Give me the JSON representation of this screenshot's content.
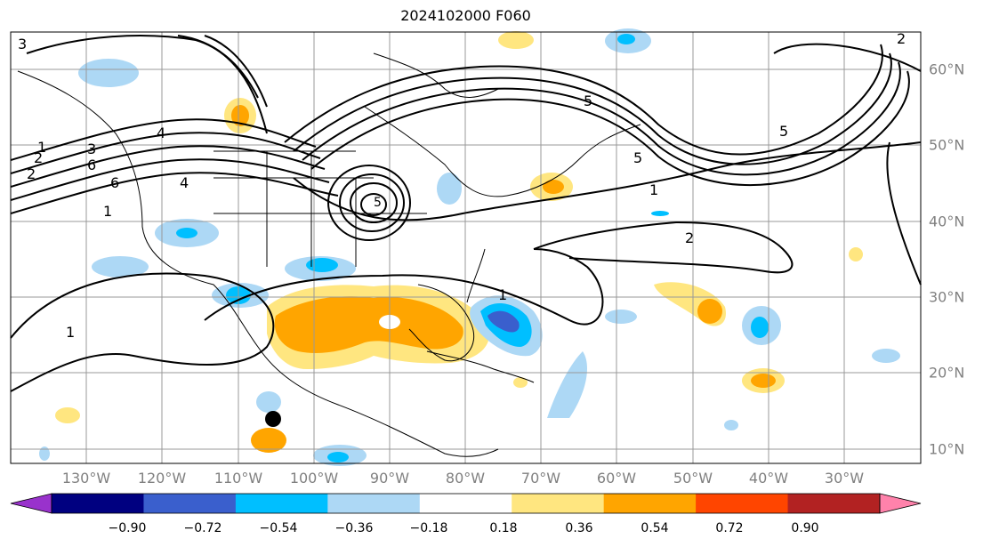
{
  "title": "2024102000 F060",
  "map": {
    "lon_labels": [
      "130°W",
      "120°W",
      "110°W",
      "100°W",
      "90°W",
      "80°W",
      "70°W",
      "60°W",
      "50°W",
      "40°W",
      "30°W"
    ],
    "lat_labels": [
      "60°N",
      "50°N",
      "40°N",
      "30°N",
      "20°N",
      "10°N"
    ],
    "contour_labels": [
      "1",
      "2",
      "3",
      "4",
      "5",
      "6",
      "1",
      "2",
      "3",
      "4",
      "5",
      "6",
      "1",
      "2",
      "1",
      "1",
      "2",
      "5",
      "5"
    ],
    "marker": "storm-center-dot"
  },
  "colorbar": {
    "ticks": [
      "−0.90",
      "−0.72",
      "−0.54",
      "−0.36",
      "−0.18",
      "0.18",
      "0.36",
      "0.54",
      "0.72",
      "0.90"
    ],
    "colors": [
      "#9932cc",
      "#000080",
      "#3a5fcd",
      "#00bfff",
      "#add8f5",
      "#ffffff",
      "#ffe680",
      "#ffa500",
      "#ff4500",
      "#b22222",
      "#ff82ab"
    ]
  }
}
